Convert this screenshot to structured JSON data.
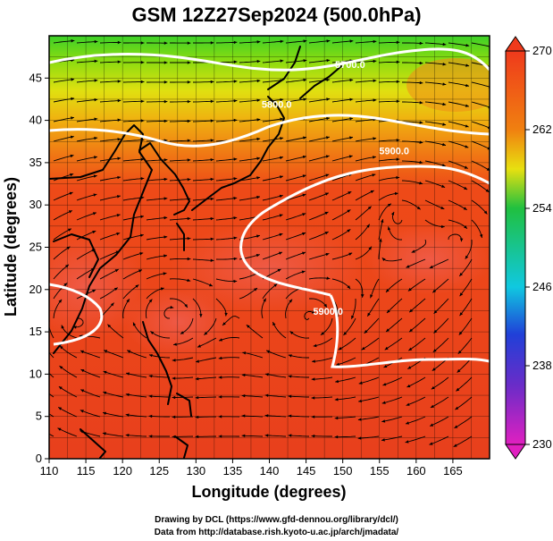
{
  "title": "GSM 12Z27Sep2024 (500.0hPa)",
  "credits": {
    "line1": "Drawing by DCL (https://www.gfd-dennou.org/library/dcl/)",
    "line2": "Data from http://database.rish.kyoto-u.ac.jp/arch/jmadata/"
  },
  "map": {
    "xlabel": "Longitude (degrees)",
    "ylabel": "Latitude  (degrees)",
    "lon_range": [
      110,
      170
    ],
    "lat_range": [
      0,
      50
    ],
    "lon_ticks": [
      "110",
      "115",
      "120",
      "125",
      "130",
      "135",
      "140",
      "145",
      "150",
      "155",
      "160",
      "165"
    ],
    "lat_ticks": [
      "0",
      "5",
      "10",
      "15",
      "20",
      "25",
      "30",
      "35",
      "40",
      "45"
    ],
    "contours": [
      {
        "label": "5700.0",
        "lon": 151,
        "lat": 46.2
      },
      {
        "label": "5800.0",
        "lon": 141,
        "lat": 41.5
      },
      {
        "label": "5900.0",
        "lon": 157,
        "lat": 36.0
      },
      {
        "label": "5900.0",
        "lon": 148,
        "lat": 17.0
      }
    ]
  },
  "colorbar": {
    "ticks": [
      "270",
      "262",
      "254",
      "246",
      "238",
      "230"
    ],
    "range": [
      230,
      270
    ],
    "colors": {
      "magenta": "#e020c0",
      "purple": "#6a2cc8",
      "blue": "#2040d8",
      "cyan": "#10c8e0",
      "green": "#20c040",
      "yellow": "#e8e010",
      "orange": "#f08010",
      "red": "#ef3a1c"
    }
  }
}
